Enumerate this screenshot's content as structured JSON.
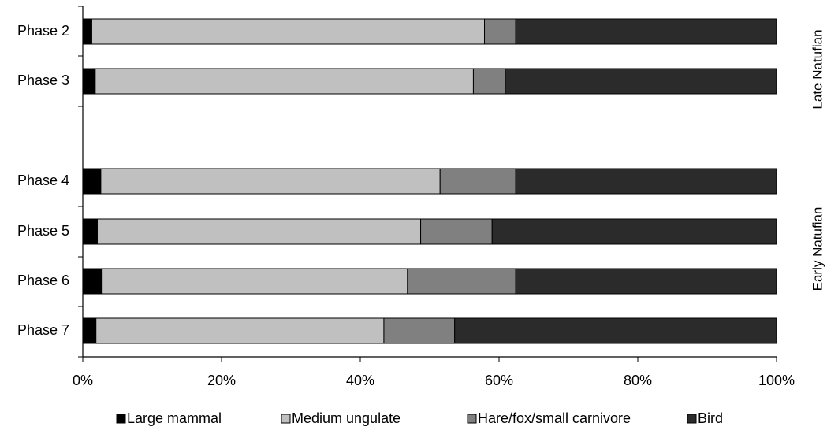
{
  "chart_data": {
    "type": "bar",
    "orientation": "horizontal",
    "stacked": true,
    "percent_stacked": true,
    "categories": [
      "Phase 2",
      "Phase 3",
      "Phase 4",
      "Phase 5",
      "Phase 6",
      "Phase 7"
    ],
    "series": [
      {
        "name": "Large mammal",
        "color": "#000000",
        "values": [
          1.3,
          1.8,
          2.6,
          2.1,
          2.8,
          1.9
        ]
      },
      {
        "name": "Medium ungulate",
        "color": "#c0c0c0",
        "values": [
          56.6,
          54.5,
          48.9,
          46.6,
          44.0,
          41.5
        ]
      },
      {
        "name": "Hare/fox/small carnivore",
        "color": "#808080",
        "values": [
          4.5,
          4.6,
          10.9,
          10.3,
          15.6,
          10.2
        ]
      },
      {
        "name": "Bird",
        "color": "#2b2b2b",
        "values": [
          37.6,
          39.1,
          37.6,
          41.0,
          37.6,
          46.4
        ]
      }
    ],
    "xlim": [
      0,
      100
    ],
    "xticks": [
      "0%",
      "20%",
      "40%",
      "60%",
      "80%",
      "100%"
    ],
    "groups": [
      {
        "label": "Late Natufian",
        "categories": [
          "Phase 2",
          "Phase 3"
        ]
      },
      {
        "label": "Early Natufian",
        "categories": [
          "Phase 4",
          "Phase 5",
          "Phase 6",
          "Phase 7"
        ]
      }
    ],
    "legend_position": "bottom",
    "grid": false
  }
}
